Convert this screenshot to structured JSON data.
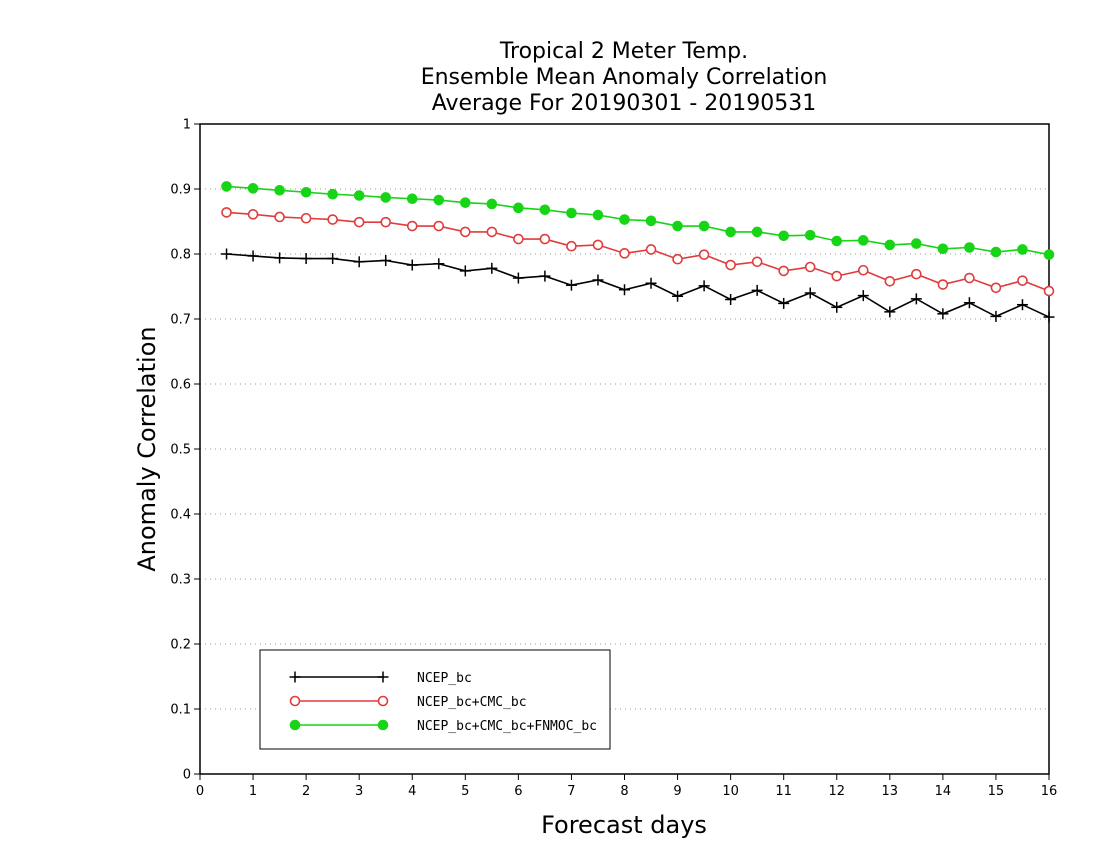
{
  "chart_data": {
    "type": "line",
    "title_lines": [
      "Tropical 2 Meter Temp.",
      "Ensemble Mean Anomaly Correlation",
      "Average For 20190301 - 20190531"
    ],
    "xlabel": "Forecast days",
    "ylabel": "Anomaly Correlation",
    "xlim": [
      0,
      16
    ],
    "ylim": [
      0,
      1
    ],
    "x_ticks": [
      0,
      1,
      2,
      3,
      4,
      5,
      6,
      7,
      8,
      9,
      10,
      11,
      12,
      13,
      14,
      15,
      16
    ],
    "y_ticks": [
      0,
      0.1,
      0.2,
      0.3,
      0.4,
      0.5,
      0.6,
      0.7,
      0.8,
      0.9,
      1
    ],
    "y_tick_labels": [
      "0",
      "0.1",
      "0.2",
      "0.3",
      "0.4",
      "0.5",
      "0.6",
      "0.7",
      "0.8",
      "0.9",
      "1"
    ],
    "grid": "horizontal dotted",
    "legend_position": "bottom-left",
    "x": [
      0.5,
      1,
      1.5,
      2,
      2.5,
      3,
      3.5,
      4,
      4.5,
      5,
      5.5,
      6,
      6.5,
      7,
      7.5,
      8,
      8.5,
      9,
      9.5,
      10,
      10.5,
      11,
      11.5,
      12,
      12.5,
      13,
      13.5,
      14,
      14.5,
      15,
      15.5,
      16
    ],
    "series": [
      {
        "name": "NCEP_bc",
        "color": "#000000",
        "marker": "plus",
        "values": [
          0.8,
          0.797,
          0.794,
          0.793,
          0.793,
          0.788,
          0.79,
          0.783,
          0.785,
          0.774,
          0.778,
          0.763,
          0.766,
          0.752,
          0.76,
          0.745,
          0.755,
          0.735,
          0.751,
          0.73,
          0.744,
          0.724,
          0.74,
          0.718,
          0.736,
          0.711,
          0.731,
          0.708,
          0.725,
          0.704,
          0.722,
          0.703
        ]
      },
      {
        "name": "NCEP_bc+CMC_bc",
        "color": "#e03c3c",
        "marker": "open-circle",
        "values": [
          0.864,
          0.861,
          0.857,
          0.855,
          0.853,
          0.849,
          0.849,
          0.843,
          0.843,
          0.834,
          0.834,
          0.823,
          0.823,
          0.812,
          0.814,
          0.801,
          0.807,
          0.792,
          0.799,
          0.783,
          0.788,
          0.774,
          0.78,
          0.766,
          0.775,
          0.758,
          0.769,
          0.753,
          0.763,
          0.748,
          0.759,
          0.743
        ]
      },
      {
        "name": "NCEP_bc+CMC_bc+FNMOC_bc",
        "color": "#17d417",
        "marker": "filled-circle",
        "values": [
          0.904,
          0.901,
          0.898,
          0.895,
          0.892,
          0.89,
          0.887,
          0.885,
          0.883,
          0.879,
          0.877,
          0.871,
          0.868,
          0.863,
          0.86,
          0.853,
          0.851,
          0.843,
          0.843,
          0.834,
          0.834,
          0.828,
          0.829,
          0.82,
          0.821,
          0.814,
          0.816,
          0.808,
          0.81,
          0.803,
          0.807,
          0.799
        ]
      }
    ]
  }
}
